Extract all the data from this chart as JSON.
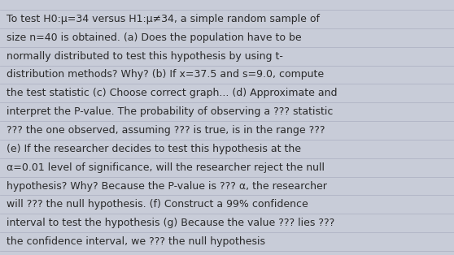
{
  "text_lines": [
    "To test H0:μ=34 versus H1:μ≠34, a simple random sample of",
    "size n=40 is obtained. (a) Does the population have to be",
    "normally distributed to test this hypothesis by using t-",
    "distribution methods? Why? (b) If x=37.5 and s=9.0, compute",
    "the test statistic (c) Choose correct graph... (d) Approximate and",
    "interpret the P-value. The probability of observing a ??? statistic",
    "??? the one observed, assuming ??? is true, is in the range ???",
    "(e) If the researcher decides to test this hypothesis at the",
    "α=0.01 level of significance, will the researcher reject the null",
    "hypothesis? Why? Because the P-value is ??? α, the researcher",
    "will ??? the null hypothesis. (f) Construct a 99% confidence",
    "interval to test the hypothesis (g) Because the value ??? lies ???",
    "the confidence interval, we ??? the null hypothesis"
  ],
  "bg_color": "#c8ccd8",
  "text_color": "#2a2a2a",
  "font_size": 9.0,
  "fig_width": 5.58,
  "fig_height": 3.14,
  "line_color": "#b0b4c4",
  "font_weight": "normal"
}
